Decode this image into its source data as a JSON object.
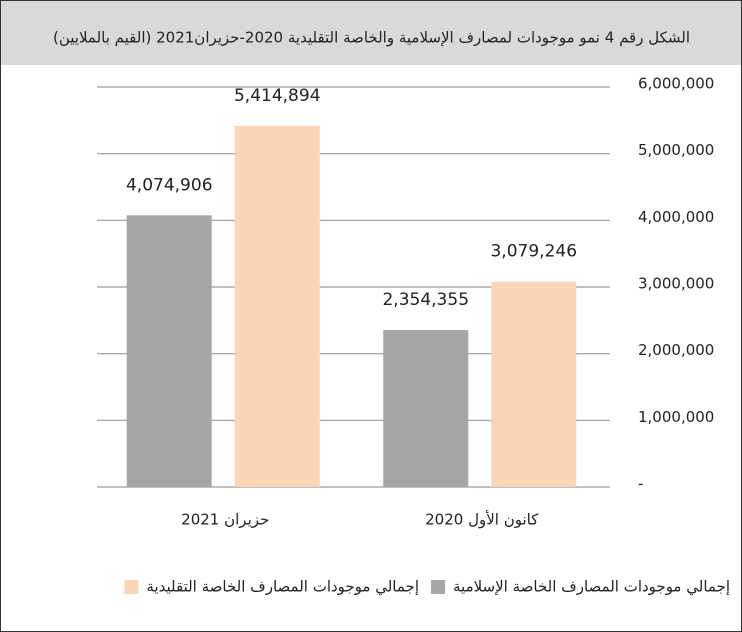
{
  "chart_data": {
    "type": "bar",
    "title": "الشكل رقم 4 نمو موجودات لمصارف الإسلامية والخاصة التقليدية 2020-حزيران2021  (القيم بالملايين)",
    "categories": [
      "كانون الأول 2020",
      "حزيران 2021"
    ],
    "series": [
      {
        "name": "إجمالي موجودات المصارف الخاصة الإسلامية",
        "color": "#a6a6a6",
        "values": [
          2354355,
          4074906
        ],
        "value_labels": [
          "2,354,355",
          "4,074,906"
        ]
      },
      {
        "name": "إجمالي موجودات المصارف الخاصة التقليدية",
        "color": "#fbd5b5",
        "values": [
          3079246,
          5414894
        ],
        "value_labels": [
          "3,079,246",
          "5,414,894"
        ]
      }
    ],
    "ylim": [
      0,
      6000000
    ],
    "yticks": [
      {
        "value": 0,
        "label": "-"
      },
      {
        "value": 1000000,
        "label": "1,000,000"
      },
      {
        "value": 2000000,
        "label": "2,000,000"
      },
      {
        "value": 3000000,
        "label": "3,000,000"
      },
      {
        "value": 4000000,
        "label": "4,000,000"
      },
      {
        "value": 5000000,
        "label": "5,000,000"
      },
      {
        "value": 6000000,
        "label": "6,000,000"
      }
    ],
    "grid": true,
    "legend": "bottom"
  }
}
